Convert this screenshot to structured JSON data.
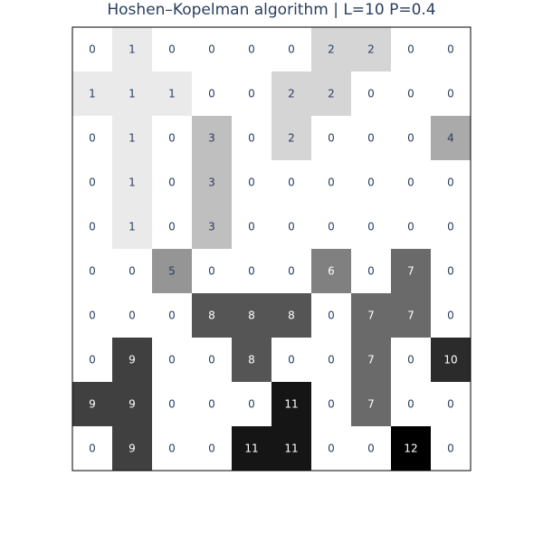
{
  "chart_data": {
    "type": "heatmap",
    "title": "Hoshen–Kopelman algorithm | L=10 P=0.4",
    "xlabel": "",
    "ylabel": "",
    "rows": 10,
    "cols": 10,
    "zmin": 0,
    "zmax": 12,
    "colorscale": [
      "#ffffff",
      "#000000"
    ],
    "grid": false,
    "legend": "none",
    "values": [
      [
        0,
        1,
        0,
        0,
        0,
        0,
        2,
        2,
        0,
        0
      ],
      [
        1,
        1,
        1,
        0,
        0,
        2,
        2,
        0,
        0,
        0
      ],
      [
        0,
        1,
        0,
        3,
        0,
        2,
        0,
        0,
        0,
        4
      ],
      [
        0,
        1,
        0,
        3,
        0,
        0,
        0,
        0,
        0,
        0
      ],
      [
        0,
        1,
        0,
        3,
        0,
        0,
        0,
        0,
        0,
        0
      ],
      [
        0,
        0,
        5,
        0,
        0,
        0,
        6,
        0,
        7,
        0
      ],
      [
        0,
        0,
        0,
        8,
        8,
        8,
        0,
        7,
        7,
        0
      ],
      [
        0,
        9,
        0,
        0,
        8,
        0,
        0,
        7,
        0,
        10
      ],
      [
        9,
        9,
        0,
        0,
        0,
        11,
        0,
        7,
        0,
        0
      ],
      [
        0,
        9,
        0,
        0,
        11,
        11,
        0,
        0,
        12,
        0
      ]
    ]
  }
}
